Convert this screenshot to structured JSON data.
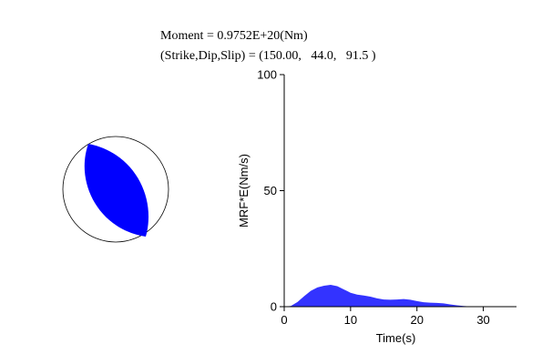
{
  "header": {
    "moment_line": "Moment = 0.9752E+20(Nm)",
    "mechanism_line": "(Strike,Dip,Slip) = (150.00,   44.0,   91.5 )"
  },
  "beachball": {
    "fill_color": "#0000ff",
    "outline_color": "#000000",
    "strike": 150.0,
    "dip": 44.0,
    "slip": 91.5
  },
  "chart_data": {
    "type": "area",
    "title": "",
    "xlabel": "Time(s)",
    "ylabel": "MRF*E(Nm/s)",
    "xlim": [
      0,
      35
    ],
    "ylim": [
      0,
      100
    ],
    "xticks": [
      0,
      10,
      20,
      30
    ],
    "yticks": [
      0,
      50,
      100
    ],
    "grid": false,
    "fill_color": "#3333ff",
    "series": [
      {
        "x": [
          0,
          1,
          2,
          3,
          4,
          5,
          6,
          7,
          8,
          9,
          10,
          11,
          12,
          13,
          14,
          15,
          16,
          17,
          18,
          19,
          20,
          21,
          22,
          23,
          24,
          25,
          26,
          27,
          28,
          29,
          30
        ],
        "values": [
          0,
          0.3,
          2.0,
          4.5,
          6.8,
          8.3,
          9.0,
          9.4,
          8.8,
          7.4,
          6.0,
          5.2,
          4.8,
          4.3,
          3.6,
          3.1,
          3.0,
          3.1,
          3.3,
          3.0,
          2.4,
          1.9,
          1.7,
          1.6,
          1.4,
          1.0,
          0.6,
          0.3,
          0.1,
          0,
          0
        ]
      }
    ]
  }
}
